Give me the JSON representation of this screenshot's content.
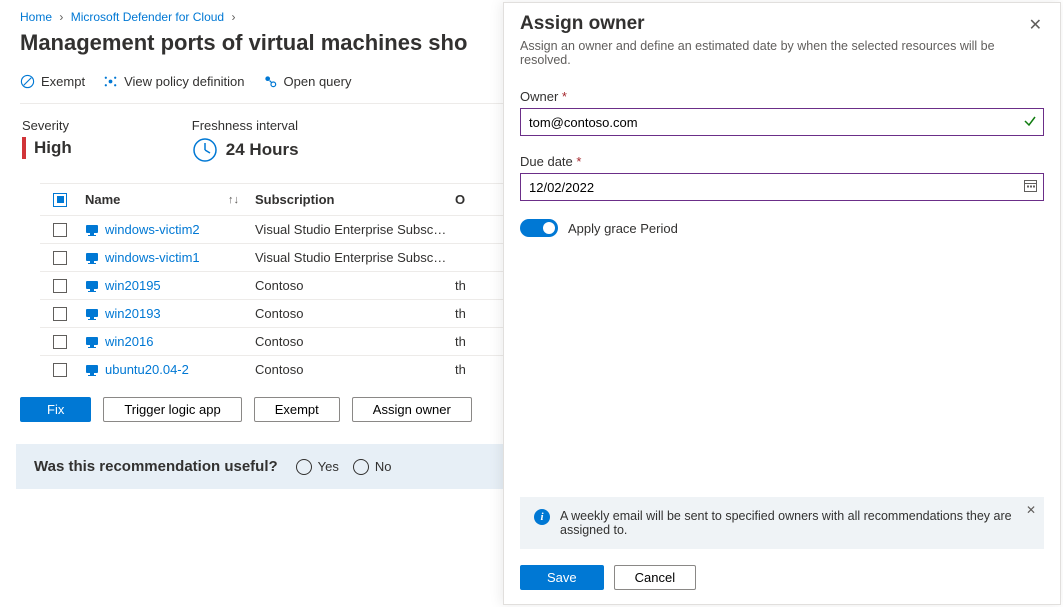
{
  "breadcrumb": {
    "items": [
      "Home",
      "Microsoft Defender for Cloud"
    ]
  },
  "pageTitle": "Management ports of virtual machines sho",
  "toolbar": {
    "exempt": "Exempt",
    "viewPolicy": "View policy definition",
    "openQuery": "Open query"
  },
  "meta": {
    "severityLabel": "Severity",
    "severityValue": "High",
    "severityBarColor": "#d13438",
    "freshnessLabel": "Freshness interval",
    "freshnessValue": "24 Hours"
  },
  "table": {
    "headers": {
      "name": "Name",
      "subscription": "Subscription",
      "owner": "O"
    },
    "rows": [
      {
        "name": "windows-victim2",
        "subscription": "Visual Studio Enterprise Subsc…",
        "owner": ""
      },
      {
        "name": "windows-victim1",
        "subscription": "Visual Studio Enterprise Subsc…",
        "owner": ""
      },
      {
        "name": "win20195",
        "subscription": "Contoso",
        "owner": "th"
      },
      {
        "name": "win20193",
        "subscription": "Contoso",
        "owner": "th"
      },
      {
        "name": "win2016",
        "subscription": "Contoso",
        "owner": "th"
      },
      {
        "name": "ubuntu20.04-2",
        "subscription": "Contoso",
        "owner": "th"
      }
    ]
  },
  "actions": {
    "fix": "Fix",
    "triggerLogic": "Trigger logic app",
    "exempt": "Exempt",
    "assignOwner": "Assign owner"
  },
  "feedback": {
    "question": "Was this recommendation useful?",
    "yes": "Yes",
    "no": "No"
  },
  "panel": {
    "title": "Assign owner",
    "description": "Assign an owner and define an estimated date by when the selected resources will be resolved.",
    "ownerLabel": "Owner",
    "ownerValue": "tom@contoso.com",
    "dueLabel": "Due date",
    "dueValue": "12/02/2022",
    "graceToggleOn": true,
    "graceLabel": "Apply grace Period",
    "infoText": "A weekly email will be sent to specified owners with all recommendations they are assigned to.",
    "save": "Save",
    "cancel": "Cancel"
  },
  "colors": {
    "primary": "#0078d4",
    "inputBorder": "#6b2e88"
  }
}
